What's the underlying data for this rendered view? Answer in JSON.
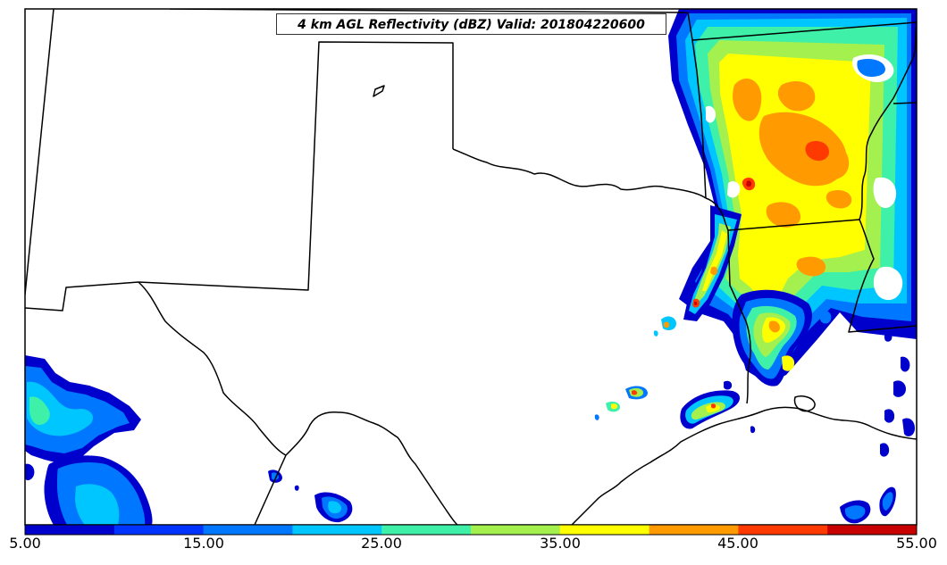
{
  "title": "4 km AGL Reflectivity (dBZ) Valid: 201804220600",
  "colorbar": {
    "colors": [
      "#0000cc",
      "#0033ff",
      "#0077ff",
      "#00c6ff",
      "#3ef0a8",
      "#a4f04e",
      "#ffff00",
      "#ff9a00",
      "#ff3a00",
      "#c80000"
    ],
    "tick_labels": [
      "5.00",
      "15.00",
      "25.00",
      "35.00",
      "45.00",
      "55.00"
    ],
    "range": [
      5,
      55
    ]
  },
  "legend_colors": {
    "c10": "#0000cc",
    "c15": "#0033ff",
    "c20": "#0077ff",
    "c25": "#00c6ff",
    "c30": "#3ef0a8",
    "c35": "#a4f04e",
    "c40": "#ffff00",
    "c45": "#ff9a00",
    "c50": "#ff3a00",
    "c55": "#c80000"
  }
}
